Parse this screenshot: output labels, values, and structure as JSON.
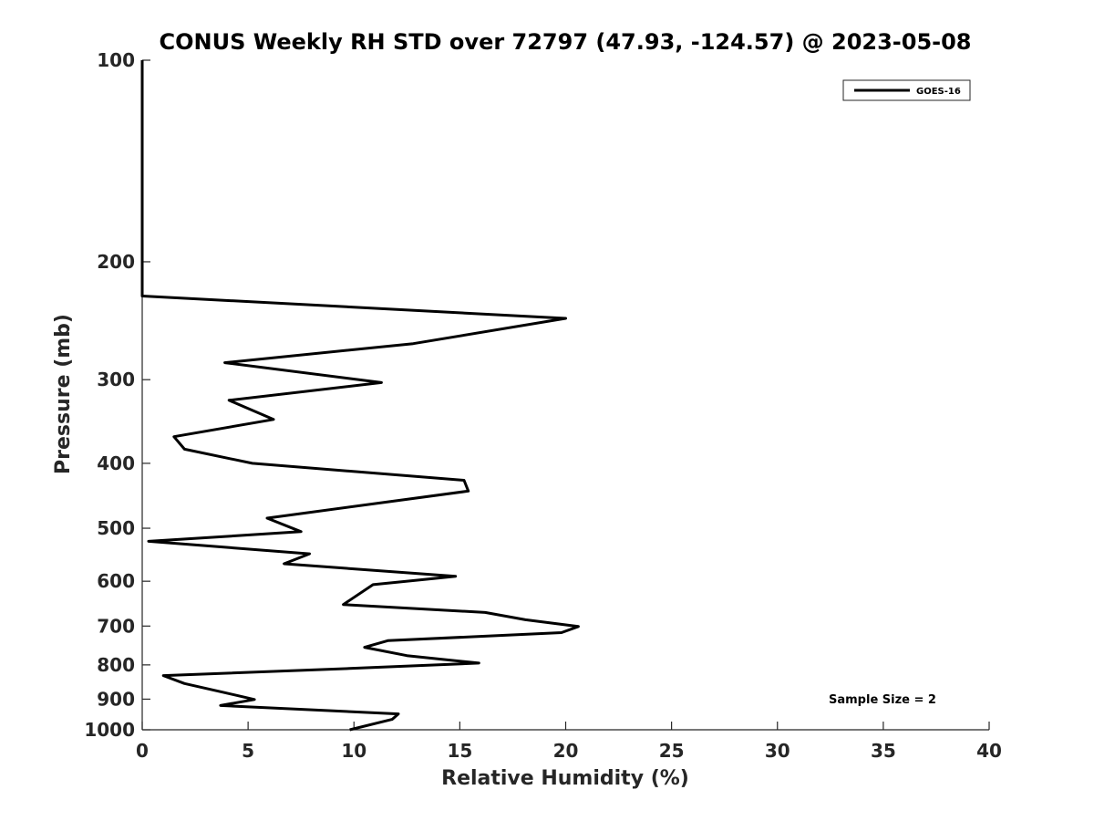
{
  "chart_data": {
    "type": "line",
    "title": "CONUS Weekly RH STD over 72797 (47.93, -124.57) @ 2023-05-08",
    "xlabel": "Relative Humidity (%)",
    "ylabel": "Pressure (mb)",
    "xlim": [
      0,
      40
    ],
    "ylim": [
      100,
      1000
    ],
    "yscale": "log",
    "y_reversed": true,
    "x_ticks": [
      0,
      5,
      10,
      15,
      20,
      25,
      30,
      35,
      40
    ],
    "y_ticks": [
      100,
      200,
      300,
      400,
      500,
      600,
      700,
      800,
      900,
      1000
    ],
    "grid": false,
    "legend_position": "top-right",
    "series": [
      {
        "name": "GOES-16",
        "color": "#000000",
        "x": [
          0,
          0,
          0,
          0,
          20,
          12.8,
          3.9,
          11.3,
          4.1,
          6.2,
          1.5,
          2.0,
          5.2,
          15.2,
          15.4,
          5.9,
          7.5,
          0.3,
          7.9,
          6.7,
          14.8,
          10.9,
          9.5,
          16.2,
          18.1,
          20.6,
          19.8,
          11.6,
          10.5,
          12.5,
          15.9,
          9.8,
          1.0,
          2.0,
          3.9,
          5.3,
          3.7,
          12.1,
          11.8,
          9.8
        ],
        "y": [
          100,
          150,
          200,
          225,
          243,
          265,
          283,
          303,
          322,
          344,
          365,
          381,
          400,
          424,
          440,
          483,
          506,
          523,
          546,
          565,
          590,
          607,
          650,
          668,
          685,
          701,
          716,
          736,
          753,
          775,
          795,
          810,
          830,
          853,
          880,
          901,
          920,
          947,
          965,
          1000
        ]
      }
    ],
    "annotations": [
      {
        "text": "Sample Size = 2",
        "position": "bottom-right"
      }
    ]
  }
}
